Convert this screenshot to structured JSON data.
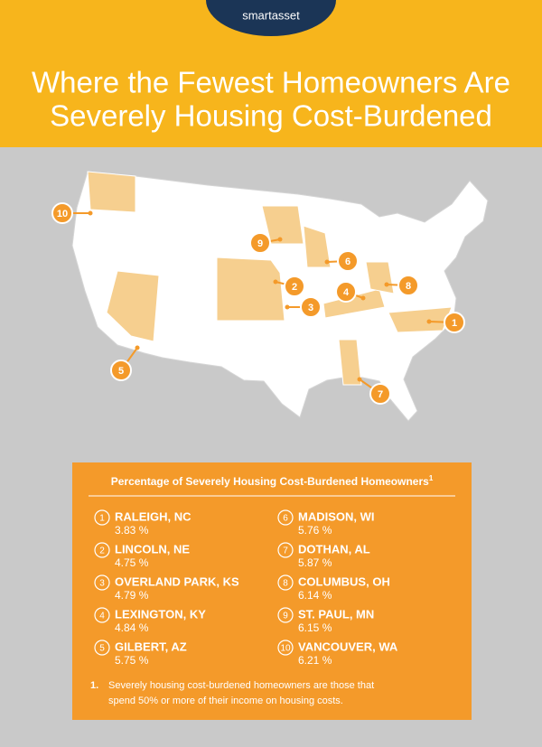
{
  "logo": "smartasset",
  "title": [
    "Where the Fewest Homeowners Are",
    "Severely Housing Cost-Burdened"
  ],
  "panel": {
    "heading": "Percentage of Severely Housing Cost-Burdened Homeowners",
    "heading_note": "1",
    "rankings": [
      {
        "rank": 1,
        "city": "RALEIGH, NC",
        "value": "3.83 %"
      },
      {
        "rank": 2,
        "city": "LINCOLN, NE",
        "value": "4.75 %"
      },
      {
        "rank": 3,
        "city": "OVERLAND PARK, KS",
        "value": "4.79 %"
      },
      {
        "rank": 4,
        "city": "LEXINGTON, KY",
        "value": "4.84 %"
      },
      {
        "rank": 5,
        "city": "GILBERT, AZ",
        "value": "5.75 %"
      },
      {
        "rank": 6,
        "city": "MADISON, WI",
        "value": "5.76 %"
      },
      {
        "rank": 7,
        "city": "DOTHAN, AL",
        "value": "5.87 %"
      },
      {
        "rank": 8,
        "city": "COLUMBUS, OH",
        "value": "6.14 %"
      },
      {
        "rank": 9,
        "city": "ST. PAUL, MN",
        "value": "6.15 %"
      },
      {
        "rank": 10,
        "city": "VANCOUVER, WA",
        "value": "6.21 %"
      }
    ],
    "footnote": {
      "number": "1.",
      "text": [
        "Severely housing cost-burdened homeowners are those that",
        "spend 50% or more of their income on housing costs."
      ]
    }
  }
}
